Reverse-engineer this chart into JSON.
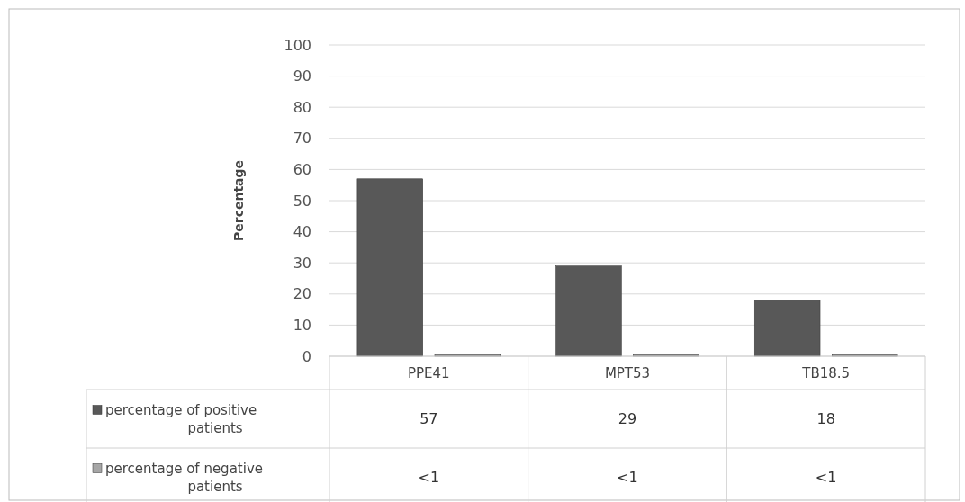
{
  "chart_data": {
    "type": "bar",
    "ylabel": "Percentage",
    "categories": [
      "PPE41",
      "MPT53",
      "TB18.5"
    ],
    "series": [
      {
        "name": "percentage of positive patients",
        "color": "#585858",
        "values": [
          57,
          29,
          18
        ],
        "value_labels": [
          "57",
          "29",
          "18"
        ]
      },
      {
        "name": "percentage of negative patients",
        "color": "#a6a6a6",
        "values": [
          0.5,
          0.5,
          0.5
        ],
        "value_labels": [
          "<1",
          "<1",
          "<1"
        ]
      }
    ],
    "ylim": [
      0,
      100
    ],
    "yticks": [
      0,
      10,
      20,
      30,
      40,
      50,
      60,
      70,
      80,
      90,
      100
    ],
    "grid": "y",
    "legend": "bottom"
  }
}
